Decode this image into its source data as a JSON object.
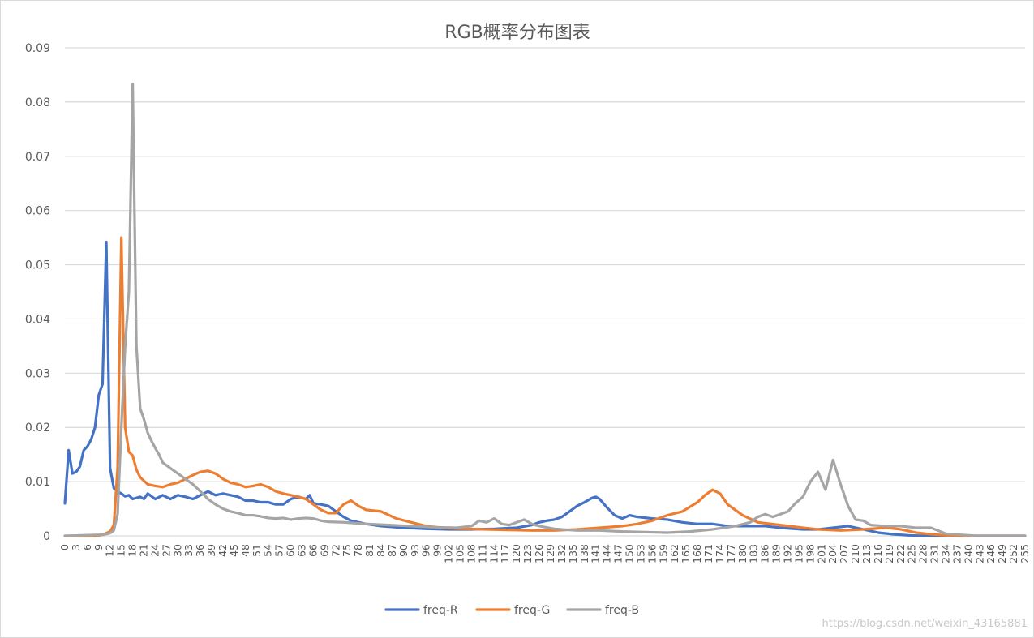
{
  "chart_data": {
    "type": "line",
    "title": "RGB概率分布图表",
    "xlabel": "",
    "ylabel": "",
    "xlim": [
      0,
      255
    ],
    "ylim": [
      0,
      0.09
    ],
    "y_ticks": [
      "0",
      "0.01",
      "0.02",
      "0.03",
      "0.04",
      "0.05",
      "0.06",
      "0.07",
      "0.08",
      "0.09"
    ],
    "x_tick_step": 3,
    "grid": true,
    "legend": "bottom",
    "colors": {
      "R": "#4472c4",
      "G": "#ed7d31",
      "B": "#a5a5a5"
    },
    "series": [
      {
        "name": "freq-R",
        "color": "#4472c4",
        "points": [
          [
            0,
            0.006
          ],
          [
            1,
            0.0158
          ],
          [
            2,
            0.0115
          ],
          [
            3,
            0.0118
          ],
          [
            4,
            0.0128
          ],
          [
            5,
            0.0158
          ],
          [
            6,
            0.0165
          ],
          [
            7,
            0.0178
          ],
          [
            8,
            0.02
          ],
          [
            9,
            0.026
          ],
          [
            10,
            0.028
          ],
          [
            11,
            0.0542
          ],
          [
            12,
            0.0125
          ],
          [
            13,
            0.0088
          ],
          [
            14,
            0.0082
          ],
          [
            15,
            0.0078
          ],
          [
            16,
            0.0073
          ],
          [
            17,
            0.0075
          ],
          [
            18,
            0.0068
          ],
          [
            20,
            0.0072
          ],
          [
            21,
            0.0068
          ],
          [
            22,
            0.0078
          ],
          [
            24,
            0.0068
          ],
          [
            26,
            0.0075
          ],
          [
            28,
            0.0068
          ],
          [
            30,
            0.0075
          ],
          [
            32,
            0.0072
          ],
          [
            34,
            0.0068
          ],
          [
            36,
            0.0075
          ],
          [
            38,
            0.0082
          ],
          [
            40,
            0.0075
          ],
          [
            42,
            0.0078
          ],
          [
            44,
            0.0075
          ],
          [
            46,
            0.0072
          ],
          [
            48,
            0.0065
          ],
          [
            50,
            0.0065
          ],
          [
            52,
            0.0062
          ],
          [
            54,
            0.0062
          ],
          [
            56,
            0.0058
          ],
          [
            58,
            0.0058
          ],
          [
            60,
            0.0068
          ],
          [
            62,
            0.0072
          ],
          [
            64,
            0.0068
          ],
          [
            65,
            0.0075
          ],
          [
            66,
            0.006
          ],
          [
            68,
            0.0058
          ],
          [
            70,
            0.0055
          ],
          [
            72,
            0.0045
          ],
          [
            74,
            0.0035
          ],
          [
            76,
            0.0028
          ],
          [
            78,
            0.0025
          ],
          [
            80,
            0.0022
          ],
          [
            84,
            0.0018
          ],
          [
            90,
            0.0015
          ],
          [
            96,
            0.0013
          ],
          [
            102,
            0.0012
          ],
          [
            108,
            0.0012
          ],
          [
            114,
            0.0013
          ],
          [
            120,
            0.0015
          ],
          [
            124,
            0.002
          ],
          [
            126,
            0.0025
          ],
          [
            128,
            0.0028
          ],
          [
            130,
            0.003
          ],
          [
            132,
            0.0035
          ],
          [
            134,
            0.0045
          ],
          [
            136,
            0.0055
          ],
          [
            138,
            0.0062
          ],
          [
            140,
            0.007
          ],
          [
            141,
            0.0072
          ],
          [
            142,
            0.0068
          ],
          [
            144,
            0.0052
          ],
          [
            146,
            0.0038
          ],
          [
            148,
            0.0032
          ],
          [
            150,
            0.0038
          ],
          [
            152,
            0.0035
          ],
          [
            156,
            0.0032
          ],
          [
            160,
            0.003
          ],
          [
            164,
            0.0025
          ],
          [
            168,
            0.0022
          ],
          [
            172,
            0.0022
          ],
          [
            176,
            0.0018
          ],
          [
            180,
            0.0018
          ],
          [
            186,
            0.0018
          ],
          [
            190,
            0.0015
          ],
          [
            196,
            0.0012
          ],
          [
            200,
            0.0012
          ],
          [
            204,
            0.0015
          ],
          [
            208,
            0.0018
          ],
          [
            212,
            0.0012
          ],
          [
            216,
            0.0006
          ],
          [
            220,
            0.0003
          ],
          [
            224,
            0.0001
          ],
          [
            228,
            0.0
          ],
          [
            255,
            0.0
          ]
        ]
      },
      {
        "name": "freq-G",
        "color": "#ed7d31",
        "points": [
          [
            0,
            0.0
          ],
          [
            8,
            0.0
          ],
          [
            10,
            0.0002
          ],
          [
            12,
            0.0008
          ],
          [
            13,
            0.002
          ],
          [
            14,
            0.0125
          ],
          [
            15,
            0.055
          ],
          [
            16,
            0.02
          ],
          [
            17,
            0.0155
          ],
          [
            18,
            0.0148
          ],
          [
            19,
            0.0122
          ],
          [
            20,
            0.0108
          ],
          [
            22,
            0.0095
          ],
          [
            24,
            0.0092
          ],
          [
            26,
            0.009
          ],
          [
            28,
            0.0095
          ],
          [
            30,
            0.0098
          ],
          [
            32,
            0.0105
          ],
          [
            34,
            0.0112
          ],
          [
            36,
            0.0118
          ],
          [
            38,
            0.012
          ],
          [
            40,
            0.0115
          ],
          [
            42,
            0.0105
          ],
          [
            44,
            0.0098
          ],
          [
            46,
            0.0095
          ],
          [
            48,
            0.009
          ],
          [
            50,
            0.0092
          ],
          [
            52,
            0.0095
          ],
          [
            54,
            0.009
          ],
          [
            56,
            0.0082
          ],
          [
            58,
            0.0078
          ],
          [
            60,
            0.0075
          ],
          [
            62,
            0.0072
          ],
          [
            64,
            0.0068
          ],
          [
            66,
            0.0058
          ],
          [
            68,
            0.0048
          ],
          [
            70,
            0.0042
          ],
          [
            72,
            0.0042
          ],
          [
            74,
            0.0058
          ],
          [
            76,
            0.0065
          ],
          [
            78,
            0.0055
          ],
          [
            80,
            0.0048
          ],
          [
            84,
            0.0045
          ],
          [
            88,
            0.0032
          ],
          [
            92,
            0.0025
          ],
          [
            96,
            0.0018
          ],
          [
            100,
            0.0015
          ],
          [
            106,
            0.0013
          ],
          [
            112,
            0.0012
          ],
          [
            118,
            0.0011
          ],
          [
            124,
            0.001
          ],
          [
            130,
            0.001
          ],
          [
            136,
            0.0012
          ],
          [
            142,
            0.0015
          ],
          [
            148,
            0.0018
          ],
          [
            152,
            0.0022
          ],
          [
            156,
            0.0028
          ],
          [
            160,
            0.0038
          ],
          [
            164,
            0.0045
          ],
          [
            168,
            0.0062
          ],
          [
            170,
            0.0075
          ],
          [
            172,
            0.0085
          ],
          [
            174,
            0.0078
          ],
          [
            176,
            0.0058
          ],
          [
            178,
            0.0048
          ],
          [
            180,
            0.0038
          ],
          [
            184,
            0.0025
          ],
          [
            190,
            0.002
          ],
          [
            196,
            0.0015
          ],
          [
            200,
            0.0012
          ],
          [
            206,
            0.001
          ],
          [
            212,
            0.0012
          ],
          [
            218,
            0.0015
          ],
          [
            222,
            0.0012
          ],
          [
            226,
            0.0006
          ],
          [
            230,
            0.0003
          ],
          [
            234,
            0.0001
          ],
          [
            238,
            0.0
          ],
          [
            255,
            0.0
          ]
        ]
      },
      {
        "name": "freq-B",
        "color": "#a5a5a5",
        "points": [
          [
            0,
            0.0
          ],
          [
            10,
            0.0002
          ],
          [
            12,
            0.0005
          ],
          [
            13,
            0.001
          ],
          [
            14,
            0.004
          ],
          [
            15,
            0.02
          ],
          [
            16,
            0.035
          ],
          [
            17,
            0.045
          ],
          [
            18,
            0.0833
          ],
          [
            19,
            0.035
          ],
          [
            20,
            0.0235
          ],
          [
            21,
            0.0215
          ],
          [
            22,
            0.019
          ],
          [
            23,
            0.0175
          ],
          [
            24,
            0.0162
          ],
          [
            25,
            0.015
          ],
          [
            26,
            0.0135
          ],
          [
            28,
            0.0125
          ],
          [
            30,
            0.0115
          ],
          [
            32,
            0.0105
          ],
          [
            34,
            0.0095
          ],
          [
            36,
            0.0082
          ],
          [
            38,
            0.0068
          ],
          [
            40,
            0.0058
          ],
          [
            42,
            0.005
          ],
          [
            44,
            0.0045
          ],
          [
            46,
            0.0042
          ],
          [
            48,
            0.0038
          ],
          [
            50,
            0.0038
          ],
          [
            52,
            0.0036
          ],
          [
            54,
            0.0033
          ],
          [
            56,
            0.0032
          ],
          [
            58,
            0.0033
          ],
          [
            60,
            0.003
          ],
          [
            62,
            0.0032
          ],
          [
            64,
            0.0033
          ],
          [
            66,
            0.0032
          ],
          [
            68,
            0.0028
          ],
          [
            70,
            0.0026
          ],
          [
            74,
            0.0025
          ],
          [
            80,
            0.0022
          ],
          [
            86,
            0.002
          ],
          [
            92,
            0.0018
          ],
          [
            98,
            0.0016
          ],
          [
            104,
            0.0015
          ],
          [
            108,
            0.0018
          ],
          [
            110,
            0.0028
          ],
          [
            112,
            0.0025
          ],
          [
            114,
            0.0032
          ],
          [
            116,
            0.0022
          ],
          [
            118,
            0.002
          ],
          [
            120,
            0.0025
          ],
          [
            122,
            0.003
          ],
          [
            124,
            0.0022
          ],
          [
            126,
            0.0018
          ],
          [
            130,
            0.0013
          ],
          [
            136,
            0.001
          ],
          [
            142,
            0.001
          ],
          [
            148,
            0.0008
          ],
          [
            154,
            0.0007
          ],
          [
            160,
            0.0006
          ],
          [
            166,
            0.0008
          ],
          [
            172,
            0.0012
          ],
          [
            178,
            0.0018
          ],
          [
            182,
            0.0025
          ],
          [
            184,
            0.0035
          ],
          [
            186,
            0.004
          ],
          [
            188,
            0.0035
          ],
          [
            190,
            0.004
          ],
          [
            192,
            0.0045
          ],
          [
            194,
            0.006
          ],
          [
            196,
            0.0072
          ],
          [
            198,
            0.01
          ],
          [
            200,
            0.0118
          ],
          [
            202,
            0.0085
          ],
          [
            204,
            0.014
          ],
          [
            206,
            0.0095
          ],
          [
            208,
            0.0055
          ],
          [
            210,
            0.003
          ],
          [
            212,
            0.0028
          ],
          [
            214,
            0.002
          ],
          [
            218,
            0.0018
          ],
          [
            222,
            0.0018
          ],
          [
            226,
            0.0015
          ],
          [
            230,
            0.0015
          ],
          [
            234,
            0.0004
          ],
          [
            238,
            0.0002
          ],
          [
            242,
            0.0
          ],
          [
            255,
            0.0
          ]
        ]
      }
    ],
    "watermark": "https://blog.csdn.net/weixin_43165881"
  }
}
